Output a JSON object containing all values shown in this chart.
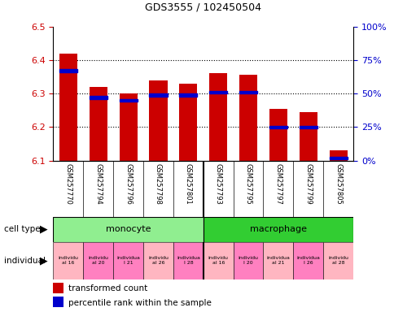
{
  "title": "GDS3555 / 102450504",
  "samples": [
    "GSM257770",
    "GSM257794",
    "GSM257796",
    "GSM257798",
    "GSM257801",
    "GSM257793",
    "GSM257795",
    "GSM257797",
    "GSM257799",
    "GSM257805"
  ],
  "red_values": [
    6.42,
    6.32,
    6.3,
    6.34,
    6.33,
    6.36,
    6.355,
    6.255,
    6.245,
    6.13
  ],
  "blue_percentiles": [
    67,
    47,
    45,
    49,
    49,
    51,
    51,
    25,
    25,
    2
  ],
  "ymin": 6.1,
  "ymax": 6.5,
  "bar_color": "#CC0000",
  "blue_color": "#0000CC",
  "tick_label_color_left": "#CC0000",
  "tick_label_color_right": "#0000CC",
  "cell_type_color_mono": "#90EE90",
  "cell_type_color_macro": "#32CD32",
  "indiv_colors": [
    "#FFB6C1",
    "#FF80C0",
    "#FF80C0",
    "#FFB6C1",
    "#FF80C0",
    "#FFB6C1",
    "#FF80C0",
    "#FFB6C1",
    "#FF80C0",
    "#FFB6C1"
  ],
  "indiv_labels": [
    "individu\nal 16",
    "individu\nal 20",
    "individua\nl 21",
    "individu\nal 26",
    "individua\nl 28",
    "individu\nal 16",
    "individu\nl 20",
    "individua\nal 21",
    "individua\nl 26",
    "individu\nal 28"
  ]
}
